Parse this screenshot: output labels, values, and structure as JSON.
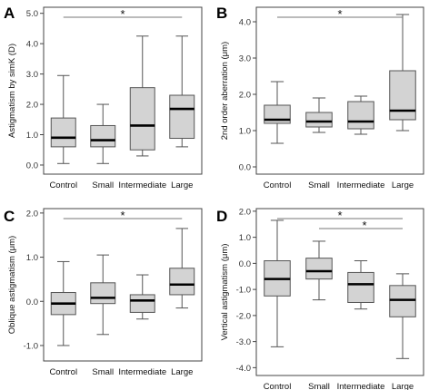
{
  "chart_data": [
    {
      "panel": "A",
      "type": "boxplot",
      "categories": [
        "Control",
        "Small",
        "Intermediate",
        "Large"
      ],
      "ylabel": "Astigmatism by simK (D)",
      "ylim": [
        -0.3,
        5.2
      ],
      "yticks": [
        "0.0",
        "1.0",
        "2.0",
        "3.0",
        "4.0",
        "5.0"
      ],
      "tick_values": [
        0,
        1,
        2,
        3,
        4,
        5
      ],
      "boxes": [
        {
          "min": 0.05,
          "q1": 0.6,
          "median": 0.9,
          "q3": 1.55,
          "max": 2.95
        },
        {
          "min": 0.05,
          "q1": 0.6,
          "median": 0.82,
          "q3": 1.3,
          "max": 2.0
        },
        {
          "min": 0.3,
          "q1": 0.5,
          "median": 1.3,
          "q3": 2.55,
          "max": 4.25
        },
        {
          "min": 0.6,
          "q1": 0.88,
          "median": 1.85,
          "q3": 2.3,
          "max": 4.25
        }
      ],
      "significance": [
        {
          "from": 0,
          "to": 3,
          "label": "*"
        }
      ]
    },
    {
      "panel": "B",
      "type": "boxplot",
      "categories": [
        "Control",
        "Small",
        "Intermediate",
        "Large"
      ],
      "ylabel": "2nd order aberration (μm)",
      "ylim": [
        -0.2,
        4.4
      ],
      "yticks": [
        "0.0",
        "1.0",
        "2.0",
        "3.0",
        "4.0"
      ],
      "tick_values": [
        0,
        1,
        2,
        3,
        4
      ],
      "boxes": [
        {
          "min": 0.65,
          "q1": 1.2,
          "median": 1.3,
          "q3": 1.7,
          "max": 2.35
        },
        {
          "min": 0.95,
          "q1": 1.1,
          "median": 1.25,
          "q3": 1.5,
          "max": 1.9
        },
        {
          "min": 0.9,
          "q1": 1.05,
          "median": 1.25,
          "q3": 1.8,
          "max": 1.95
        },
        {
          "min": 1.0,
          "q1": 1.3,
          "median": 1.55,
          "q3": 2.65,
          "max": 4.2
        }
      ],
      "significance": [
        {
          "from": 0,
          "to": 3,
          "label": "*"
        }
      ]
    },
    {
      "panel": "C",
      "type": "boxplot",
      "categories": [
        "Control",
        "Small",
        "Intermediate",
        "Large"
      ],
      "ylabel": "Oblique astigmatism (μm)",
      "ylim": [
        -1.35,
        2.1
      ],
      "yticks": [
        "-1.0",
        "0.0",
        "1.0",
        "2.0"
      ],
      "tick_values": [
        -1,
        0,
        1,
        2
      ],
      "boxes": [
        {
          "min": -1.0,
          "q1": -0.3,
          "median": -0.05,
          "q3": 0.2,
          "max": 0.9
        },
        {
          "min": -0.75,
          "q1": -0.05,
          "median": 0.08,
          "q3": 0.42,
          "max": 1.05
        },
        {
          "min": -0.4,
          "q1": -0.25,
          "median": 0.02,
          "q3": 0.15,
          "max": 0.6
        },
        {
          "min": -0.15,
          "q1": 0.15,
          "median": 0.38,
          "q3": 0.75,
          "max": 1.65
        }
      ],
      "significance": [
        {
          "from": 0,
          "to": 3,
          "label": "*"
        }
      ]
    },
    {
      "panel": "D",
      "type": "boxplot",
      "categories": [
        "Control",
        "Small",
        "Intermediate",
        "Large"
      ],
      "ylabel": "Vertical astigmatism (μm)",
      "ylim": [
        -4.3,
        2.1
      ],
      "yticks": [
        "-4.0",
        "-3.0",
        "-2.0",
        "-1.0",
        "0.0",
        "1.0",
        "2.0"
      ],
      "tick_values": [
        -4,
        -3,
        -2,
        -1,
        0,
        1,
        2
      ],
      "boxes": [
        {
          "min": -3.2,
          "q1": -1.25,
          "median": -0.6,
          "q3": 0.1,
          "max": 1.65
        },
        {
          "min": -1.4,
          "q1": -0.6,
          "median": -0.3,
          "q3": 0.2,
          "max": 0.85
        },
        {
          "min": -1.75,
          "q1": -1.5,
          "median": -0.8,
          "q3": -0.35,
          "max": 0.1
        },
        {
          "min": -3.65,
          "q1": -2.05,
          "median": -1.4,
          "q3": -0.85,
          "max": -0.4
        }
      ],
      "significance": [
        {
          "from": 0,
          "to": 3,
          "label": "*"
        },
        {
          "from": 1,
          "to": 3,
          "label": "*"
        }
      ]
    }
  ]
}
